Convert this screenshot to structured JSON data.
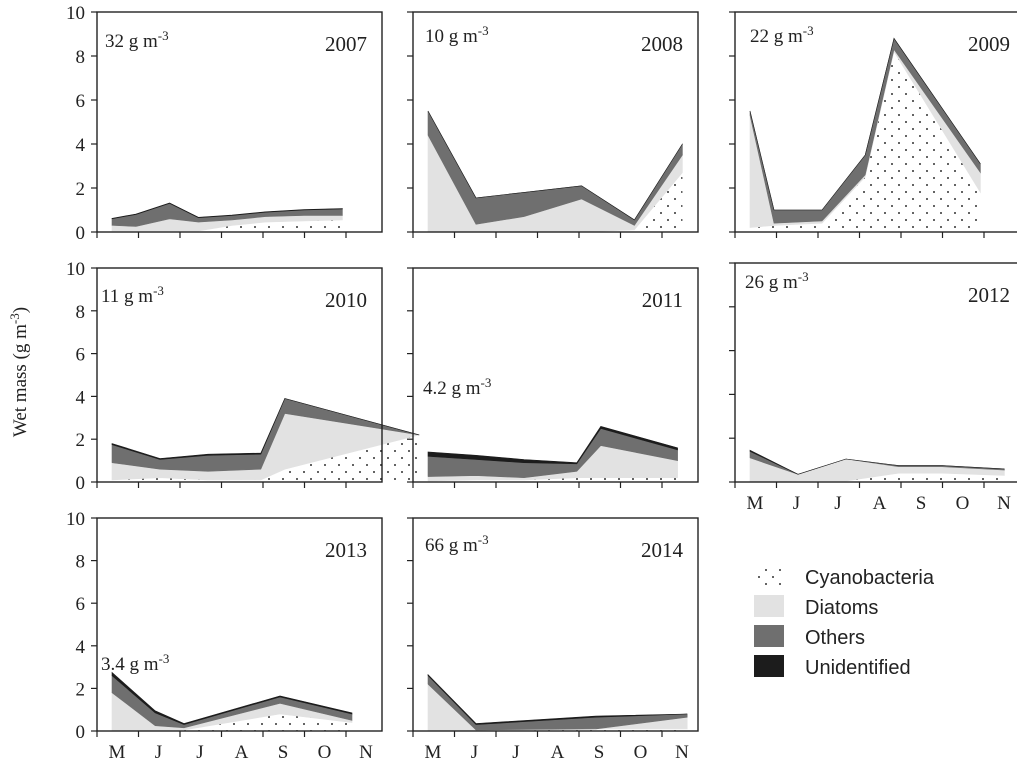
{
  "ylabel": "Wet mass (g m",
  "ylabel_sup": "-3",
  "ylabel_end": ")",
  "y_ticks": [
    "0",
    "2",
    "4",
    "6",
    "8",
    "10"
  ],
  "x_ticks": [
    "M",
    "J",
    "J",
    "A",
    "S",
    "O",
    "N"
  ],
  "legend": {
    "items": [
      {
        "label": "Cyanobacteria",
        "key": "cyano"
      },
      {
        "label": "Diatoms",
        "key": "diatoms"
      },
      {
        "label": "Others",
        "key": "others"
      },
      {
        "label": "Unidentified",
        "key": "unid"
      }
    ]
  },
  "colors": {
    "diatoms": "#e2e2e2",
    "others": "#6f6f6f",
    "unid": "#1c1c1c",
    "cyano_dot": "#333333",
    "axis": "#222222"
  },
  "chart_data": [
    {
      "type": "area",
      "title": "2007",
      "annotation": {
        "base": "32 g m",
        "sup": "-3"
      },
      "ylim": [
        0,
        10
      ],
      "x": [
        0,
        0.5,
        1.2,
        1.8,
        2.5,
        3.2,
        4.0,
        4.8
      ],
      "series": [
        {
          "name": "Cyanobacteria",
          "values": [
            0.05,
            0.05,
            0.05,
            0.05,
            0.3,
            0.45,
            0.5,
            0.55
          ]
        },
        {
          "name": "Diatoms",
          "values": [
            0.25,
            0.2,
            0.55,
            0.4,
            0.25,
            0.25,
            0.25,
            0.2
          ]
        },
        {
          "name": "Others",
          "values": [
            0.3,
            0.55,
            0.7,
            0.2,
            0.2,
            0.2,
            0.25,
            0.3
          ]
        },
        {
          "name": "Unidentified",
          "values": [
            0.02,
            0.02,
            0.02,
            0.02,
            0.02,
            0.02,
            0.02,
            0.02
          ]
        }
      ]
    },
    {
      "type": "area",
      "title": "2008",
      "annotation": {
        "base": "10 g m",
        "sup": "-3"
      },
      "ylim": [
        0,
        10
      ],
      "x": [
        0,
        1.0,
        2.0,
        3.2,
        4.3,
        5.3
      ],
      "series": [
        {
          "name": "Cyanobacteria",
          "values": [
            0.0,
            0.0,
            0.0,
            0.0,
            0.1,
            2.7
          ]
        },
        {
          "name": "Diatoms",
          "values": [
            4.4,
            0.35,
            0.7,
            1.5,
            0.2,
            0.8
          ]
        },
        {
          "name": "Others",
          "values": [
            1.1,
            1.2,
            1.1,
            0.6,
            0.25,
            0.5
          ]
        },
        {
          "name": "Unidentified",
          "values": [
            0.0,
            0.0,
            0.0,
            0.0,
            0.0,
            0.0
          ]
        }
      ]
    },
    {
      "type": "area",
      "title": "2009",
      "annotation": {
        "base": "22 g m",
        "sup": "-3"
      },
      "ylim": [
        0,
        10
      ],
      "x": [
        0,
        0.5,
        1.5,
        2.4,
        3.0,
        4.8
      ],
      "series": [
        {
          "name": "Cyanobacteria",
          "values": [
            0.2,
            0.3,
            0.4,
            2.5,
            8.2,
            1.8
          ]
        },
        {
          "name": "Diatoms",
          "values": [
            5.1,
            0.1,
            0.1,
            0.1,
            0.1,
            0.9
          ]
        },
        {
          "name": "Others",
          "values": [
            0.2,
            0.6,
            0.5,
            0.9,
            0.5,
            0.4
          ]
        },
        {
          "name": "Unidentified",
          "values": [
            0.0,
            0.0,
            0.0,
            0.0,
            0.0,
            0.0
          ]
        }
      ]
    },
    {
      "type": "area",
      "title": "2010",
      "annotation": {
        "base": "11 g m",
        "sup": "-3"
      },
      "ylim": [
        0,
        10
      ],
      "x": [
        0,
        1.0,
        2.0,
        3.1,
        3.6,
        6.4
      ],
      "series": [
        {
          "name": "Cyanobacteria",
          "values": [
            0.1,
            0.2,
            0.1,
            0.1,
            0.6,
            2.2
          ]
        },
        {
          "name": "Diatoms",
          "values": [
            0.8,
            0.4,
            0.4,
            0.5,
            2.6,
            0.0
          ]
        },
        {
          "name": "Others",
          "values": [
            0.85,
            0.45,
            0.75,
            0.7,
            0.7,
            0.0
          ]
        },
        {
          "name": "Unidentified",
          "values": [
            0.05,
            0.05,
            0.05,
            0.05,
            0.0,
            0.0
          ]
        }
      ]
    },
    {
      "type": "area",
      "title": "2011",
      "annotation": {
        "base": "4.2 g m",
        "sup": "-3"
      },
      "ylim": [
        0,
        10
      ],
      "x": [
        0,
        1.0,
        2.0,
        3.1,
        3.6,
        5.2
      ],
      "series": [
        {
          "name": "Cyanobacteria",
          "values": [
            0.05,
            0.1,
            0.1,
            0.2,
            0.2,
            0.2
          ]
        },
        {
          "name": "Diatoms",
          "values": [
            0.2,
            0.2,
            0.1,
            0.3,
            1.5,
            0.8
          ]
        },
        {
          "name": "Others",
          "values": [
            0.95,
            0.75,
            0.7,
            0.35,
            0.8,
            0.5
          ]
        },
        {
          "name": "Unidentified",
          "values": [
            0.2,
            0.2,
            0.15,
            0.05,
            0.1,
            0.1
          ]
        }
      ]
    },
    {
      "type": "area",
      "title": "2012",
      "annotation": {
        "base": "26 g m",
        "sup": "-3"
      },
      "ylim": [
        0,
        10
      ],
      "x": [
        0,
        1.0,
        2.0,
        3.1,
        4.0,
        5.3
      ],
      "series": [
        {
          "name": "Cyanobacteria",
          "values": [
            0.0,
            0.05,
            0.05,
            0.4,
            0.4,
            0.3
          ]
        },
        {
          "name": "Diatoms",
          "values": [
            1.1,
            0.3,
            1.0,
            0.3,
            0.3,
            0.25
          ]
        },
        {
          "name": "Others",
          "values": [
            0.3,
            0.0,
            0.0,
            0.05,
            0.05,
            0.05
          ]
        },
        {
          "name": "Unidentified",
          "values": [
            0.05,
            0.0,
            0.0,
            0.0,
            0.0,
            0.0
          ]
        }
      ]
    },
    {
      "type": "area",
      "title": "2013",
      "annotation": {
        "base": "3.4 g m",
        "sup": "-3"
      },
      "ylim": [
        0,
        10
      ],
      "x": [
        0,
        0.9,
        1.5,
        3.5,
        5.0
      ],
      "series": [
        {
          "name": "Cyanobacteria",
          "values": [
            0.0,
            0.0,
            0.05,
            0.8,
            0.4
          ]
        },
        {
          "name": "Diatoms",
          "values": [
            1.8,
            0.25,
            0.1,
            0.5,
            0.1
          ]
        },
        {
          "name": "Others",
          "values": [
            0.8,
            0.6,
            0.15,
            0.3,
            0.3
          ]
        },
        {
          "name": "Unidentified",
          "values": [
            0.15,
            0.1,
            0.05,
            0.05,
            0.05
          ]
        }
      ]
    },
    {
      "type": "area",
      "title": "2014",
      "annotation": {
        "base": "66 g m",
        "sup": "-3"
      },
      "ylim": [
        0,
        10
      ],
      "x": [
        0,
        1.0,
        3.5,
        5.4
      ],
      "series": [
        {
          "name": "Cyanobacteria",
          "values": [
            0.0,
            0.0,
            0.1,
            0.1
          ]
        },
        {
          "name": "Diatoms",
          "values": [
            2.2,
            0.05,
            0.0,
            0.55
          ]
        },
        {
          "name": "Others",
          "values": [
            0.4,
            0.25,
            0.55,
            0.15
          ]
        },
        {
          "name": "Unidentified",
          "values": [
            0.05,
            0.05,
            0.05,
            0.0
          ]
        }
      ]
    }
  ]
}
